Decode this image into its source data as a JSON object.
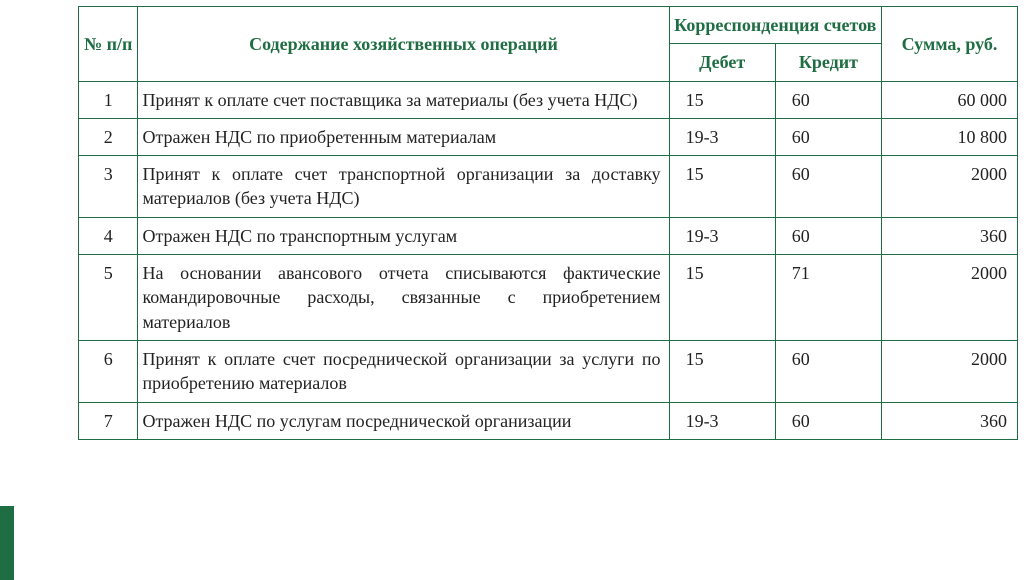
{
  "table": {
    "border_color": "#1f6e43",
    "header_text_color": "#1f6e43",
    "body_text_color": "#222222",
    "background_color": "#ffffff",
    "font_family": "Times New Roman",
    "header_fontsize": 18,
    "body_fontsize": 18,
    "columns": {
      "num": "№ п/п",
      "desc": "Содержание хозяйственных операций",
      "corr_group": "Корреспонденция счетов",
      "debit": "Дебет",
      "credit": "Кредит",
      "sum": "Сумма, руб."
    },
    "rows": [
      {
        "num": "1",
        "desc": "Принят к оплате счет поставщика за материалы (без учета НДС)",
        "debit": "15",
        "credit": "60",
        "sum": "60 000"
      },
      {
        "num": "2",
        "desc": "Отражен НДС по приобретенным материалам",
        "debit": "19-3",
        "credit": "60",
        "sum": "10 800"
      },
      {
        "num": "3",
        "desc": "Принят к оплате счет транспортной организации за доставку материалов (без учета НДС)",
        "debit": "15",
        "credit": "60",
        "sum": "2000"
      },
      {
        "num": "4",
        "desc": "Отражен НДС по транспортным услугам",
        "debit": "19-3",
        "credit": "60",
        "sum": "360"
      },
      {
        "num": "5",
        "desc": "На основании авансового отчета списываются фактические командировочные расходы, связанные с приобретением материалов",
        "debit": "15",
        "credit": "71",
        "sum": "2000"
      },
      {
        "num": "6",
        "desc": "Принят к оплате счет посреднической организации за услуги по приобретению материалов",
        "debit": "15",
        "credit": "60",
        "sum": "2000"
      },
      {
        "num": "7",
        "desc": "Отражен НДС по услугам посреднической организации",
        "debit": "19-3",
        "credit": "60",
        "sum": "360"
      }
    ]
  },
  "decoration": {
    "bar_color": "#1f6e43"
  }
}
